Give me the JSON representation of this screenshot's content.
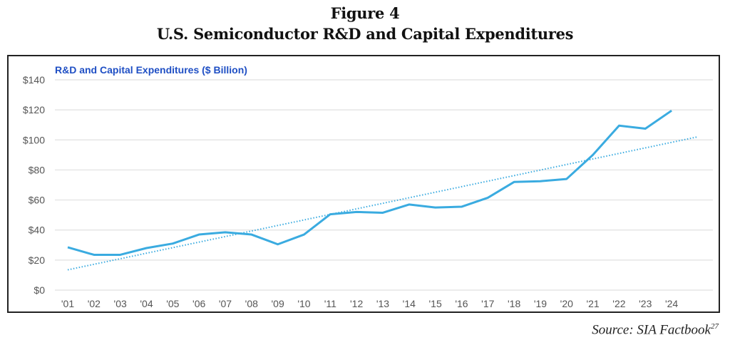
{
  "figure": {
    "label": "Figure 4",
    "title": "U.S. Semiconductor R&D and Capital Expenditures",
    "source": "Source: SIA Factbook",
    "footnote": "27"
  },
  "chart_data": {
    "type": "line",
    "title": "R&D and Capital Expenditures ($ Billion)",
    "xlabel": "",
    "ylabel": "",
    "categories": [
      "'01",
      "'02",
      "'03",
      "'04",
      "'05",
      "'06",
      "'07",
      "'08",
      "'09",
      "'10",
      "'11",
      "'12",
      "'13",
      "'14",
      "'15",
      "'16",
      "'17",
      "'18",
      "'19",
      "'20",
      "'21",
      "'22",
      "'23",
      "'24"
    ],
    "series": [
      {
        "values": [
          28.5,
          23.5,
          23.5,
          28,
          31,
          37,
          38.5,
          37,
          30.5,
          37,
          50.5,
          52,
          51.5,
          57,
          55,
          55.5,
          61.5,
          72,
          72.5,
          74,
          90,
          109.5,
          107.5,
          119.5
        ],
        "color": "#3aabe0"
      }
    ],
    "trendline": {
      "style": "dotted",
      "color": "#3aabe0",
      "start": {
        "x": "'01",
        "y": 13.5
      },
      "end_y": 102
    },
    "ylim": [
      0,
      140
    ],
    "yticks": [
      0,
      20,
      40,
      60,
      80,
      100,
      120,
      140
    ],
    "ytick_labels": [
      "$0",
      "$20",
      "$40",
      "$60",
      "$80",
      "$100",
      "$120",
      "$140"
    ],
    "grid": true,
    "legend": "none",
    "title_color": "#1f4fc4"
  }
}
